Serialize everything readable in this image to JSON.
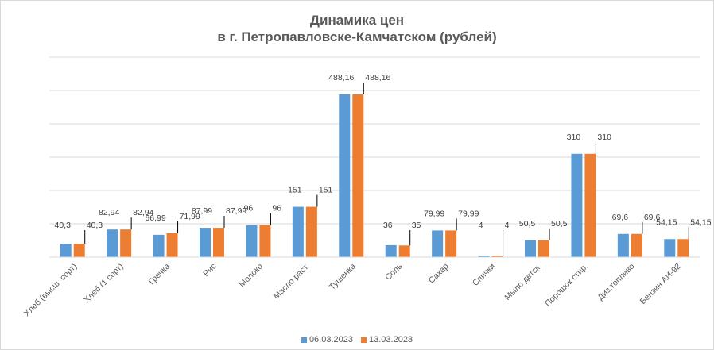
{
  "chart_data": {
    "type": "bar",
    "title": "Динамика цен",
    "subtitle": "в г. Петропавловске-Камчатском (рублей)",
    "categories": [
      "Хлеб (высш. сорт)",
      "Хлеб (1 сорт)",
      "Гречка",
      "Рис",
      "Молоко",
      "Масло раст.",
      "Тушенка",
      "Соль",
      "Сахар",
      "Спички",
      "Мыло детск.",
      "Порошок стир.",
      "Диз.топливо",
      "Бензин АИ-92"
    ],
    "series": [
      {
        "name": "06.03.2023",
        "color": "#5b9bd5",
        "values": [
          40.3,
          82.94,
          66.99,
          87.99,
          96,
          151,
          488.16,
          36,
          79.99,
          4,
          50.5,
          310,
          69.6,
          54.15
        ],
        "labels": [
          "40,3",
          "82,94",
          "66,99",
          "87,99",
          "96",
          "151",
          "488,16",
          "36",
          "79,99",
          "4",
          "50,5",
          "310",
          "69,6",
          "54,15"
        ]
      },
      {
        "name": "13.03.2023",
        "color": "#ed7d31",
        "values": [
          40.3,
          82.94,
          71.99,
          87.99,
          96,
          151,
          488.16,
          35,
          79.99,
          4,
          50.5,
          310,
          69.6,
          54.15
        ],
        "labels": [
          "40,3",
          "82,94",
          "71,99",
          "87,99",
          "96",
          "151",
          "488,16",
          "35",
          "79,99",
          "4",
          "50,5",
          "310",
          "69,6",
          "54,15"
        ]
      }
    ],
    "ylim": [
      0,
      600
    ],
    "grid": true,
    "legend": "bottom",
    "xlabel": "",
    "ylabel": ""
  }
}
